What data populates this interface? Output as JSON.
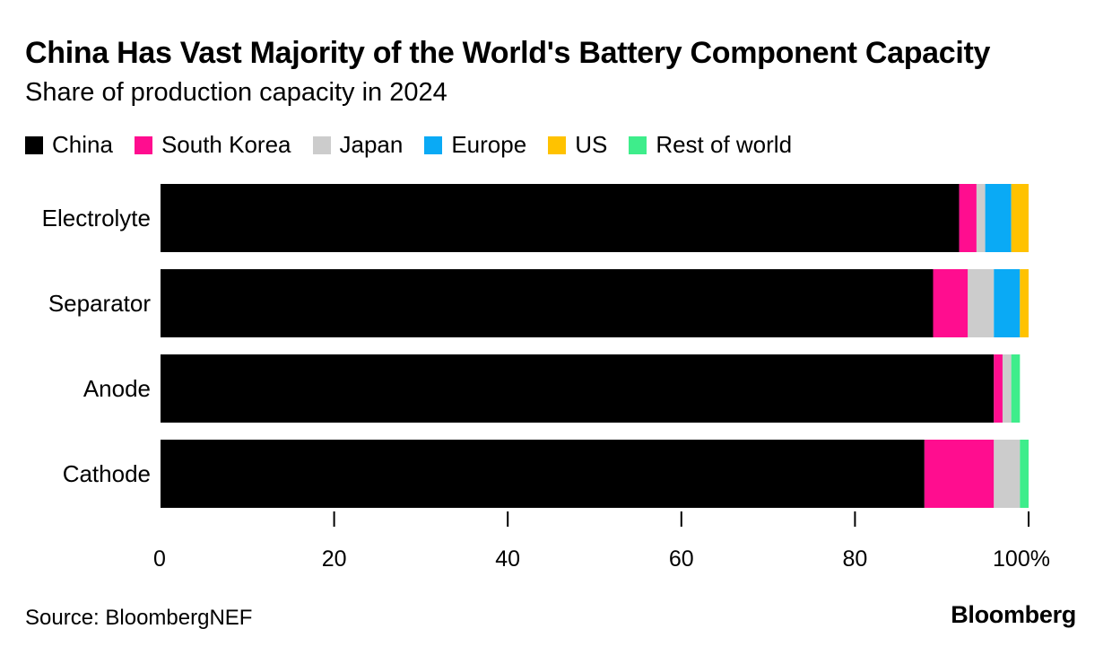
{
  "title": "China Has Vast Majority of the World's Battery Component Capacity",
  "subtitle": "Share of production capacity in 2024",
  "source": "Source: BloombergNEF",
  "brand": "Bloomberg",
  "chart_data": {
    "type": "bar",
    "orientation": "horizontal",
    "stacked": true,
    "categories": [
      "Electrolyte",
      "Separator",
      "Anode",
      "Cathode"
    ],
    "series": [
      {
        "name": "China",
        "color": "#000000",
        "values": [
          92,
          89,
          96,
          88
        ]
      },
      {
        "name": "South Korea",
        "color": "#ff0d8f",
        "values": [
          2,
          4,
          1,
          8
        ]
      },
      {
        "name": "Japan",
        "color": "#cccccc",
        "values": [
          1,
          3,
          1,
          3
        ]
      },
      {
        "name": "Europe",
        "color": "#0aaaf5",
        "values": [
          3,
          3,
          0,
          0
        ]
      },
      {
        "name": "US",
        "color": "#ffc200",
        "values": [
          2,
          1,
          0,
          0
        ]
      },
      {
        "name": "Rest of world",
        "color": "#3eed8b",
        "values": [
          0,
          0,
          1,
          1
        ]
      }
    ],
    "xlim": [
      0,
      100
    ],
    "xticks": [
      0,
      20,
      40,
      60,
      80,
      100
    ],
    "xtick_labels": [
      "0",
      "20",
      "40",
      "60",
      "80",
      "100%"
    ],
    "legend_position": "top-left",
    "grid": false
  }
}
